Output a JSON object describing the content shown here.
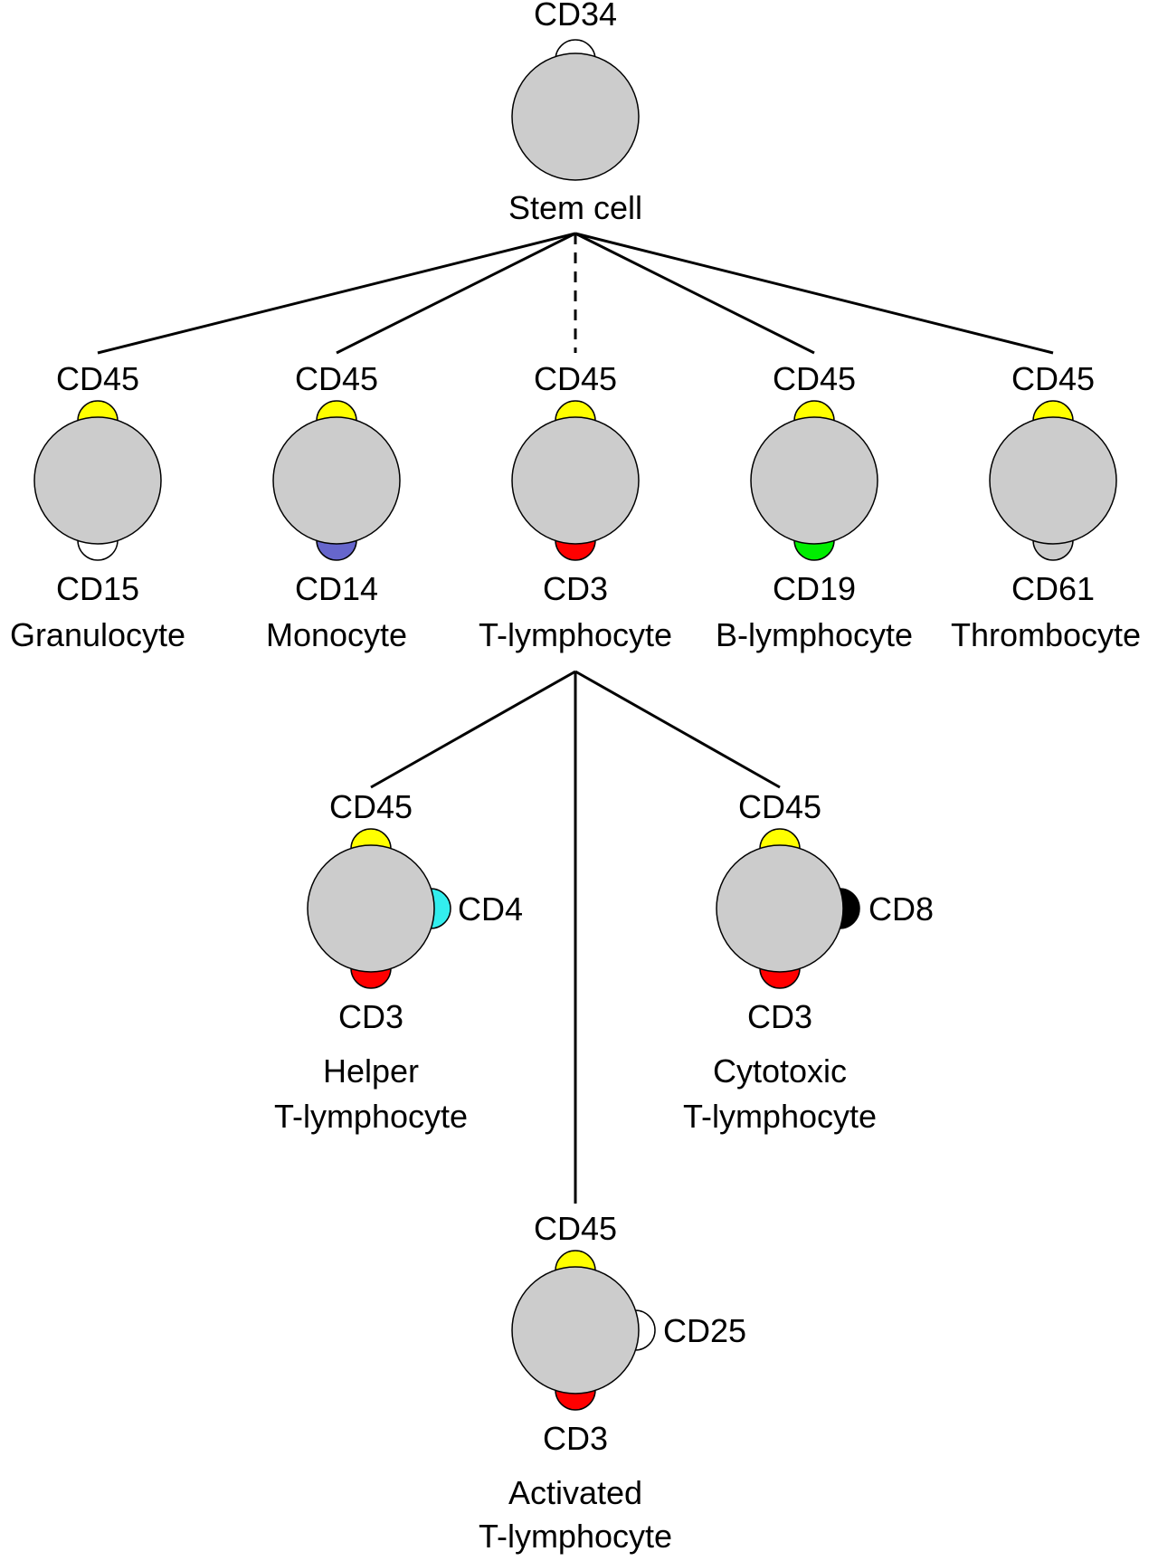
{
  "colors": {
    "cell_fill": "#cccccc",
    "cell_stroke": "#000000",
    "CD34": "#ffffff",
    "CD45": "#ffff00",
    "CD15": "#ffffff",
    "CD14": "#6666cc",
    "CD3": "#ff0000",
    "CD19": "#00ee00",
    "CD61": "#cccccc",
    "CD4": "#33eeee",
    "CD8": "#000000",
    "CD25": "#ffffff"
  },
  "cells": {
    "stem": {
      "name": "Stem cell",
      "top_marker": "CD34"
    },
    "granulocyte": {
      "name": "Granulocyte",
      "top_marker": "CD45",
      "bottom_marker": "CD15"
    },
    "monocyte": {
      "name": "Monocyte",
      "top_marker": "CD45",
      "bottom_marker": "CD14"
    },
    "t_lymphocyte": {
      "name": "T-lymphocyte",
      "top_marker": "CD45",
      "bottom_marker": "CD3"
    },
    "b_lymphocyte": {
      "name": "B-lymphocyte",
      "top_marker": "CD45",
      "bottom_marker": "CD19"
    },
    "thrombocyte": {
      "name": "Thrombocyte",
      "top_marker": "CD45",
      "bottom_marker": "CD61"
    },
    "helper": {
      "name_line1": "Helper",
      "name_line2": "T-lymphocyte",
      "top_marker": "CD45",
      "side_marker": "CD4",
      "bottom_marker": "CD3"
    },
    "cytotoxic": {
      "name_line1": "Cytotoxic",
      "name_line2": "T-lymphocyte",
      "top_marker": "CD45",
      "side_marker": "CD8",
      "bottom_marker": "CD3"
    },
    "activated": {
      "name_line1": "Activated",
      "name_line2": "T-lymphocyte",
      "top_marker": "CD45",
      "side_marker": "CD25",
      "bottom_marker": "CD3"
    }
  }
}
